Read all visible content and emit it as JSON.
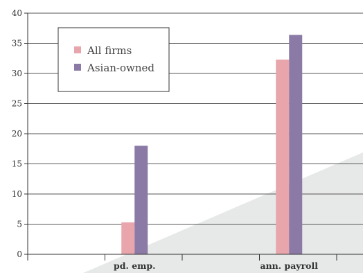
{
  "chart_data": {
    "type": "bar",
    "categories": [
      "",
      "pd. emp.",
      "",
      "ann. payroll",
      ""
    ],
    "series": [
      {
        "name": "All firms",
        "values": [
          null,
          5.3,
          null,
          32.3,
          null
        ],
        "color": "#e8a5ab"
      },
      {
        "name": "Asian-owned",
        "values": [
          null,
          18.0,
          null,
          36.4,
          null
        ],
        "color": "#8c7aa6"
      }
    ],
    "ylim": [
      0,
      40
    ],
    "yticks": [
      0,
      5,
      10,
      15,
      20,
      25,
      30,
      35,
      40
    ],
    "title": "",
    "xlabel": "",
    "ylabel": "",
    "grid": true,
    "legend_position": "top-left",
    "colors": {
      "grid": "#555555",
      "axis": "#333333",
      "background_shape": "#e6e9e8"
    }
  }
}
